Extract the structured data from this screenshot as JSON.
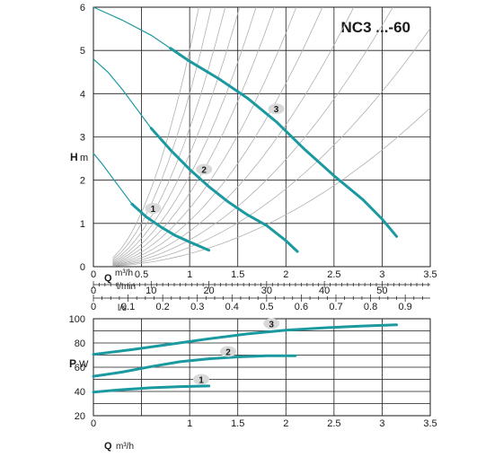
{
  "colors": {
    "curve": "#1a9aa0",
    "grid": "#1a1a1a",
    "text": "#1a1a1a",
    "system_curve": "#b0b0b0",
    "badge": "#d9d9d9"
  },
  "chart_data": [
    {
      "type": "line",
      "title": "NC3 ...-60",
      "xlabel": "Q",
      "xunit": "m³/h",
      "ylabel": "H",
      "yunit": "m",
      "xlim": [
        0,
        3.5
      ],
      "ylim": [
        0,
        6
      ],
      "x_ticks": [
        "0",
        "0.5",
        "1",
        "1.5",
        "2",
        "2.5",
        "3",
        "3.5"
      ],
      "x_tick_values": [
        0,
        0.5,
        1,
        1.5,
        2,
        2.5,
        3,
        3.5
      ],
      "y_ticks": [
        "0",
        "1",
        "2",
        "3",
        "4",
        "5",
        "6"
      ],
      "y_tick_values": [
        0,
        1,
        2,
        3,
        4,
        5,
        6
      ],
      "grid": true,
      "secondary_axes": [
        {
          "unit": "l/min",
          "ticks": [
            "0",
            "10",
            "20",
            "30",
            "40",
            "50"
          ],
          "tick_values": [
            0,
            10,
            20,
            30,
            40,
            50
          ],
          "minor_step": 1
        },
        {
          "unit": "l/s",
          "ticks": [
            "0",
            "0.1",
            "0.2",
            "0.3",
            "0.4",
            "0.5",
            "0.6",
            "0.7",
            "0.8",
            "0.9"
          ],
          "tick_values": [
            0,
            0.1,
            0.2,
            0.3,
            0.4,
            0.5,
            0.6,
            0.7,
            0.8,
            0.9
          ],
          "minor_step": 0.025
        }
      ],
      "series": [
        {
          "name": "1",
          "thin": {
            "x": [
              0,
              0.1,
              0.2,
              0.3,
              0.4
            ],
            "y": [
              2.62,
              2.35,
              2.05,
              1.75,
              1.45
            ]
          },
          "thick": {
            "x": [
              0.4,
              0.55,
              0.7,
              0.85,
              1.0,
              1.2
            ],
            "y": [
              1.45,
              1.15,
              0.92,
              0.72,
              0.57,
              0.38
            ]
          },
          "label_at": [
            0.62,
            1.35
          ]
        },
        {
          "name": "2",
          "thin": {
            "x": [
              0,
              0.15,
              0.3,
              0.45,
              0.6
            ],
            "y": [
              4.8,
              4.5,
              4.1,
              3.65,
              3.2
            ]
          },
          "thick": {
            "x": [
              0.6,
              0.8,
              1.0,
              1.2,
              1.4,
              1.6,
              1.8,
              2.0,
              2.12
            ],
            "y": [
              3.2,
              2.7,
              2.25,
              1.85,
              1.5,
              1.2,
              0.95,
              0.6,
              0.35
            ]
          },
          "label_at": [
            1.15,
            2.25
          ]
        },
        {
          "name": "3",
          "thin": {
            "x": [
              0,
              0.3,
              0.6,
              0.8
            ],
            "y": [
              6.0,
              5.7,
              5.35,
              5.05
            ]
          },
          "thick": {
            "x": [
              0.8,
              1.0,
              1.3,
              1.6,
              1.9,
              2.2,
              2.5,
              2.8,
              3.0,
              3.15
            ],
            "y": [
              5.05,
              4.75,
              4.35,
              3.9,
              3.35,
              2.7,
              2.1,
              1.55,
              1.1,
              0.7
            ]
          },
          "label_at": [
            1.9,
            3.65
          ]
        }
      ],
      "system_curve_coefficients": [
        0.3,
        0.45,
        0.62,
        0.82,
        1.06,
        1.35,
        1.7,
        2.1,
        2.6,
        3.2,
        4.0,
        5.0
      ]
    },
    {
      "type": "line",
      "xlabel": "Q",
      "xunit": "m³/h",
      "ylabel": "P",
      "yunit": "W",
      "xlim": [
        0,
        3.5
      ],
      "ylim": [
        20,
        100
      ],
      "x_ticks": [
        "0",
        "0.5",
        "1",
        "1.5",
        "2",
        "2.5",
        "3",
        "3.5"
      ],
      "x_tick_values": [
        0,
        0.5,
        1,
        1.5,
        2,
        2.5,
        3,
        3.5
      ],
      "y_ticks": [
        "20",
        "40",
        "60",
        "80",
        "100"
      ],
      "y_tick_values": [
        20,
        40,
        60,
        80,
        100
      ],
      "grid": true,
      "series": [
        {
          "name": "1",
          "x": [
            0,
            0.3,
            0.6,
            0.9,
            1.2
          ],
          "y": [
            39.5,
            41.5,
            43,
            44,
            44.5
          ],
          "label_at": [
            1.12,
            50
          ]
        },
        {
          "name": "2",
          "x": [
            0,
            0.3,
            0.6,
            0.9,
            1.2,
            1.5,
            1.8,
            2.1
          ],
          "y": [
            52.5,
            56,
            60.5,
            64.5,
            67,
            68.5,
            69.5,
            69.5
          ],
          "label_at": [
            1.4,
            73
          ]
        },
        {
          "name": "3",
          "x": [
            0,
            0.4,
            0.8,
            1.2,
            1.6,
            2.0,
            2.4,
            2.8,
            3.15
          ],
          "y": [
            70.5,
            74.5,
            79,
            83.5,
            87.5,
            90.5,
            92.5,
            94,
            95
          ],
          "label_at": [
            1.85,
            96
          ]
        }
      ]
    }
  ]
}
